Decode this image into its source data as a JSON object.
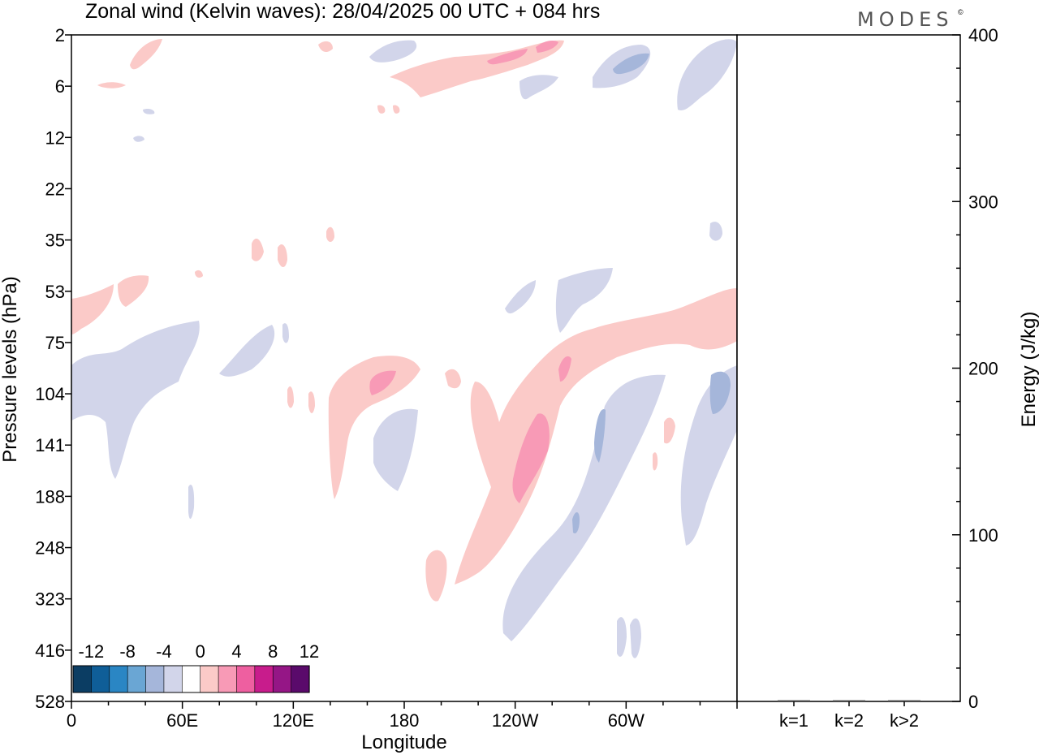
{
  "chart_data": [
    {
      "type": "heatmap",
      "title": "Zonal wind (Kelvin waves):  28/04/2025  00 UTC  + 084 hrs",
      "xlabel": "Longitude",
      "ylabel": "Pressure levels (hPa)",
      "x_ticks": [
        "0",
        "60E",
        "120E",
        "180",
        "120W",
        "60W"
      ],
      "x_tick_values": [
        0,
        60,
        120,
        180,
        240,
        300
      ],
      "xlim": [
        0,
        360
      ],
      "y_ticks": [
        "2",
        "6",
        "12",
        "22",
        "35",
        "53",
        "75",
        "104",
        "141",
        "188",
        "248",
        "323",
        "416",
        "528"
      ],
      "y_scale": "log-pressure (reversed, 2 at top, 528 at bottom)",
      "colorbar": {
        "labels": [
          "-12",
          "-8",
          "-4",
          "0",
          "4",
          "8",
          "12"
        ],
        "colors": [
          "#0b3d63",
          "#0f5e98",
          "#2a86c4",
          "#6aa6d4",
          "#a5b6da",
          "#d2d5ea",
          "#ffffff",
          "#fbcac8",
          "#f89ab6",
          "#ee5fa0",
          "#c81c8c",
          "#951686",
          "#5a0a6b"
        ]
      },
      "fill_colors": {
        "neg_light": "#d2d5ea",
        "neg_mid": "#a5b6da",
        "pos_light": "#fbcac8",
        "pos_mid": "#f89ab6"
      },
      "grid": false
    },
    {
      "type": "bar",
      "categories": [
        "k=1",
        "k=2",
        "k>2"
      ],
      "values": [
        0,
        0,
        0
      ],
      "ylabel": "Energy (J/kg)",
      "ylim": [
        0,
        400
      ],
      "y_ticks": [
        "0",
        "100",
        "200",
        "300",
        "400"
      ],
      "grid": false
    }
  ],
  "brand": {
    "logo": "MODES",
    "mark": "©"
  }
}
